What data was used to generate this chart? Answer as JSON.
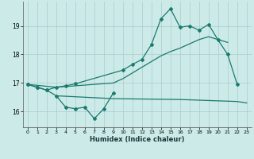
{
  "xlabel": "Humidex (Indice chaleur)",
  "bg_color": "#cceae8",
  "line_color": "#1a7a6e",
  "grid_color": "#aacccc",
  "xticks": [
    0,
    1,
    2,
    3,
    4,
    5,
    6,
    7,
    8,
    9,
    10,
    11,
    12,
    13,
    14,
    15,
    16,
    17,
    18,
    19,
    20,
    21,
    22,
    23
  ],
  "yticks": [
    16,
    17,
    18,
    19
  ],
  "ylim": [
    15.45,
    19.85
  ],
  "xlim": [
    -0.5,
    23.5
  ],
  "line1_x": [
    0,
    1,
    2,
    3,
    4,
    5,
    6,
    7,
    8,
    9
  ],
  "line1_y": [
    16.95,
    16.85,
    16.75,
    16.55,
    16.15,
    16.1,
    16.15,
    15.75,
    16.1,
    16.65
  ],
  "line1b_x": [
    3,
    9,
    16,
    22,
    23
  ],
  "line1b_y": [
    16.55,
    16.45,
    16.42,
    16.35,
    16.3
  ],
  "line2_x": [
    0,
    1,
    2,
    3,
    4,
    5,
    10,
    11,
    12,
    13,
    14,
    15,
    16,
    17,
    18,
    19,
    20,
    21,
    22
  ],
  "line2_y": [
    16.95,
    16.85,
    16.75,
    16.85,
    16.9,
    16.97,
    17.45,
    17.65,
    17.82,
    18.35,
    19.25,
    19.6,
    18.95,
    19.0,
    18.85,
    19.05,
    18.5,
    18.0,
    16.95
  ],
  "line3_x": [
    0,
    3,
    9,
    10,
    11,
    12,
    13,
    14,
    15,
    16,
    17,
    18,
    19,
    20,
    21
  ],
  "line3_y": [
    16.95,
    16.85,
    17.0,
    17.15,
    17.35,
    17.55,
    17.75,
    17.95,
    18.1,
    18.22,
    18.37,
    18.52,
    18.62,
    18.52,
    18.42
  ]
}
